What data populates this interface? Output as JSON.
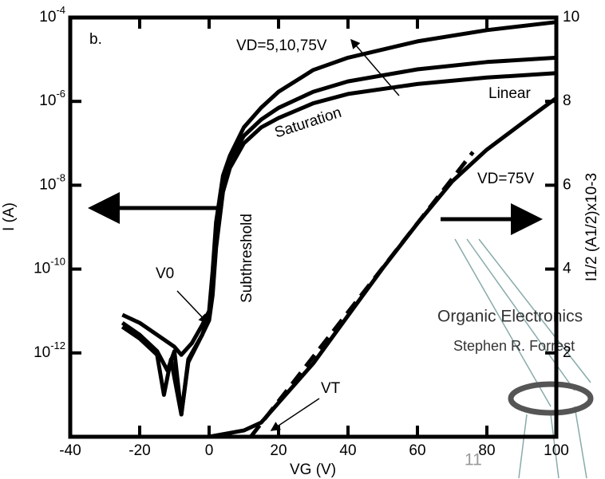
{
  "chart_data": {
    "type": "line",
    "panel_label": "b.",
    "xlabel": "VG (V)",
    "ylabel": "I (A)",
    "y2label": "I1/2 (A1/2)x10-3",
    "yscale": "log",
    "xlim": [
      -40,
      100
    ],
    "xticks": [
      -40,
      -20,
      0,
      20,
      40,
      60,
      80,
      100
    ],
    "ylim": [
      1e-14,
      0.0001
    ],
    "yticks": [
      {
        "value": 0.0001,
        "label": "10-4"
      },
      {
        "value": 1e-06,
        "label": "10-6"
      },
      {
        "value": 1e-08,
        "label": "10-8"
      },
      {
        "value": 1e-10,
        "label": "10-10"
      },
      {
        "value": 1e-12,
        "label": "10-12"
      }
    ],
    "y2lim": [
      0,
      10
    ],
    "y2ticks": [
      2,
      4,
      6,
      8,
      10
    ],
    "series": [
      {
        "color": "#000000",
        "x": [
          -25,
          -20,
          -15,
          -10,
          -8,
          -5,
          -2,
          0,
          1,
          2,
          4,
          6,
          10,
          15,
          20,
          30,
          40,
          60,
          80,
          100
        ],
        "values": [
          8.1e-12,
          5.2e-12,
          2.7e-12,
          1.4e-12,
          9e-13,
          1.7e-12,
          4.6e-12,
          1e-11,
          9e-11,
          1.3e-09,
          1.7e-08,
          5.1e-08,
          2.4e-07,
          7.1e-07,
          1.7e-06,
          5.6e-06,
          1.1e-05,
          2.7e-05,
          5e-05,
          7.8e-05
        ]
      },
      {
        "color": "#000000",
        "x": [
          -25,
          -20,
          -15,
          -12,
          -10,
          -8,
          -6,
          -2,
          0,
          1,
          2,
          4,
          6,
          10,
          15,
          20,
          30,
          40,
          60,
          80,
          100
        ],
        "values": [
          5.2e-12,
          2.7e-12,
          1.1e-12,
          3.8e-13,
          1.1e-12,
          3.4e-14,
          7e-13,
          2.7e-12,
          8e-12,
          3.7e-11,
          5e-10,
          1.1e-08,
          4e-08,
          1.5e-07,
          3.7e-07,
          7e-07,
          1.7e-06,
          3e-06,
          5.8e-06,
          8.7e-06,
          1.1e-05
        ]
      },
      {
        "color": "#000000",
        "x": [
          -25,
          -20,
          -15,
          -13,
          -11,
          -8,
          -6,
          -2,
          0,
          1,
          2,
          4,
          6,
          10,
          15,
          20,
          30,
          40,
          60,
          80,
          100
        ],
        "values": [
          4.2e-12,
          2.2e-12,
          9e-13,
          1e-13,
          7e-13,
          3.4e-14,
          6e-13,
          2.7e-12,
          6e-12,
          2.4e-11,
          3.2e-10,
          7e-09,
          2.6e-08,
          1e-07,
          2.4e-07,
          4e-07,
          9e-07,
          1.5e-06,
          2.6e-06,
          3.7e-06,
          4.7e-06
        ]
      },
      {
        "color": "#000000",
        "axis": "y2",
        "x": [
          0,
          10,
          15,
          20,
          30,
          40,
          50,
          60,
          70,
          80,
          90,
          100
        ],
        "values": [
          0,
          0.15,
          0.34,
          0.81,
          1.75,
          2.89,
          4.02,
          5.09,
          6.09,
          6.85,
          7.47,
          8.08
        ]
      },
      {
        "color": "#000000",
        "axis": "y2",
        "dashed": true,
        "x": [
          12,
          76
        ],
        "values": [
          0,
          6.79
        ]
      }
    ],
    "annotations": [
      "VD=5,10,75V",
      "Saturation",
      "Subthreshold",
      "Linear",
      "VD=75V",
      "V0",
      "VT"
    ],
    "watermark": {
      "title": "Organic Electronics",
      "author": "Stephen R. Forrest",
      "page": "11"
    }
  }
}
